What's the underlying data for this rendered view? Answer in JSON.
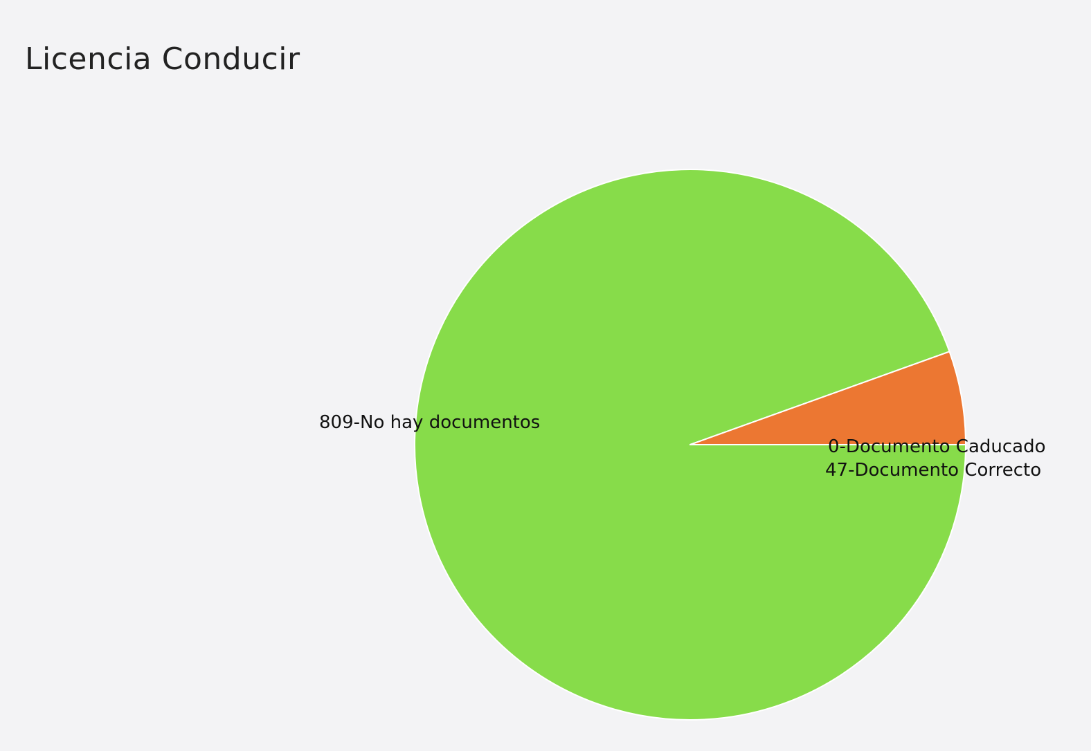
{
  "chart_data": {
    "type": "pie",
    "title": "Licencia Conducir",
    "slices": [
      {
        "label": "809-No hay documentos",
        "name": "No hay documentos",
        "value": 809,
        "color": "#87dc4a"
      },
      {
        "label": "0-Documento Caducado",
        "name": "Documento Caducado",
        "value": 0,
        "color": "#e3d24a"
      },
      {
        "label": "47-Documento Correcto",
        "name": "Documento Correcto",
        "value": 47,
        "color": "#ec7732"
      }
    ],
    "start_angle_deg": 0,
    "direction": "clockwise",
    "stroke_color": "#ffffff"
  }
}
